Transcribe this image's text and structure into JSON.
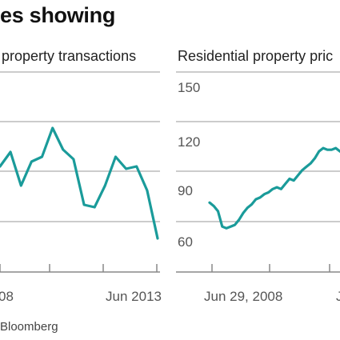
{
  "headline": "es showing",
  "source": "Bloomberg",
  "colors": {
    "series": "#1a9b9a",
    "grid": "#9a9a9a",
    "axis": "#888888"
  },
  "chart_data": [
    {
      "type": "line",
      "title": "property transactions",
      "x_tick_labels": [
        "08",
        "Jun 2013"
      ],
      "y_tick_labels": [],
      "grid": true,
      "series": [
        {
          "values": [
            64,
            70,
            56,
            66,
            68,
            80,
            71,
            67,
            48,
            47,
            56,
            68,
            63,
            64,
            54,
            34
          ]
        }
      ]
    },
    {
      "type": "line",
      "title": "Residential property pric",
      "x_tick_labels": [
        "Jun 29, 2008",
        "J"
      ],
      "y_tick_labels": [
        "150",
        "120",
        "90",
        "60"
      ],
      "ylim": [
        60,
        150
      ],
      "grid": true,
      "series": [
        {
          "values": [
            80,
            78,
            75,
            66,
            65,
            66,
            67,
            70,
            74,
            77,
            79,
            82,
            83,
            85,
            86,
            88,
            89,
            88,
            91,
            94,
            93,
            96,
            99,
            101,
            103,
            106,
            110,
            112,
            111,
            111,
            112,
            110
          ]
        }
      ]
    }
  ]
}
